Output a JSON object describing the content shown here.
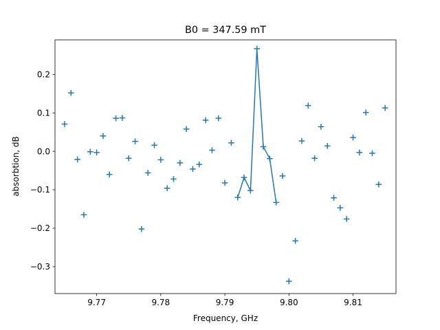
{
  "chart_data": {
    "type": "scatter",
    "title": "B0 = 347.59 mT",
    "xlabel": "Frequency, GHz",
    "ylabel": "absorbtion, dB",
    "xlim": [
      9.7635,
      9.8167
    ],
    "ylim": [
      -0.37,
      0.29
    ],
    "grid": false,
    "xticks": [
      9.77,
      9.78,
      9.79,
      9.8,
      9.81
    ],
    "xtick_labels": [
      "9.77",
      "9.78",
      "9.79",
      "9.80",
      "9.81"
    ],
    "yticks": [
      0.2,
      0.1,
      0.0,
      -0.1,
      -0.2,
      -0.3
    ],
    "ytick_labels": [
      "0.2",
      "0.1",
      "0.0",
      "−0.1",
      "−0.2",
      "−0.3"
    ],
    "colors": {
      "series": "#1f77b4"
    },
    "series": [
      {
        "marker": "plus",
        "x": [
          9.765,
          9.766,
          9.767,
          9.768,
          9.769,
          9.77,
          9.771,
          9.772,
          9.773,
          9.774,
          9.775,
          9.776,
          9.777,
          9.778,
          9.779,
          9.78,
          9.781,
          9.782,
          9.783,
          9.784,
          9.785,
          9.786,
          9.787,
          9.788,
          9.789,
          9.79,
          9.791,
          9.792,
          9.793,
          9.794,
          9.795,
          9.796,
          9.797,
          9.798,
          9.799,
          9.8,
          9.801,
          9.802,
          9.803,
          9.804,
          9.805,
          9.806,
          9.807,
          9.808,
          9.809,
          9.81,
          9.811,
          9.812,
          9.813,
          9.814,
          9.815
        ],
        "y": [
          0.071,
          0.152,
          -0.021,
          -0.165,
          -0.001,
          -0.003,
          0.04,
          -0.06,
          0.086,
          0.087,
          -0.018,
          0.026,
          -0.202,
          -0.056,
          0.016,
          -0.022,
          -0.096,
          -0.072,
          -0.03,
          0.058,
          -0.046,
          -0.034,
          0.081,
          0.003,
          0.086,
          -0.082,
          0.022,
          -0.12,
          -0.068,
          -0.102,
          0.267,
          0.012,
          -0.019,
          -0.133,
          -0.064,
          -0.338,
          -0.233,
          0.027,
          0.119,
          -0.018,
          0.064,
          0.014,
          -0.121,
          -0.147,
          -0.176,
          0.036,
          -0.003,
          0.101,
          -0.005,
          -0.086,
          0.113
        ]
      },
      {
        "marker": "line",
        "x": [
          9.792,
          9.793,
          9.794,
          9.795,
          9.796,
          9.797,
          9.798
        ],
        "y": [
          -0.12,
          -0.068,
          -0.102,
          0.267,
          0.012,
          -0.019,
          -0.133
        ]
      }
    ]
  }
}
